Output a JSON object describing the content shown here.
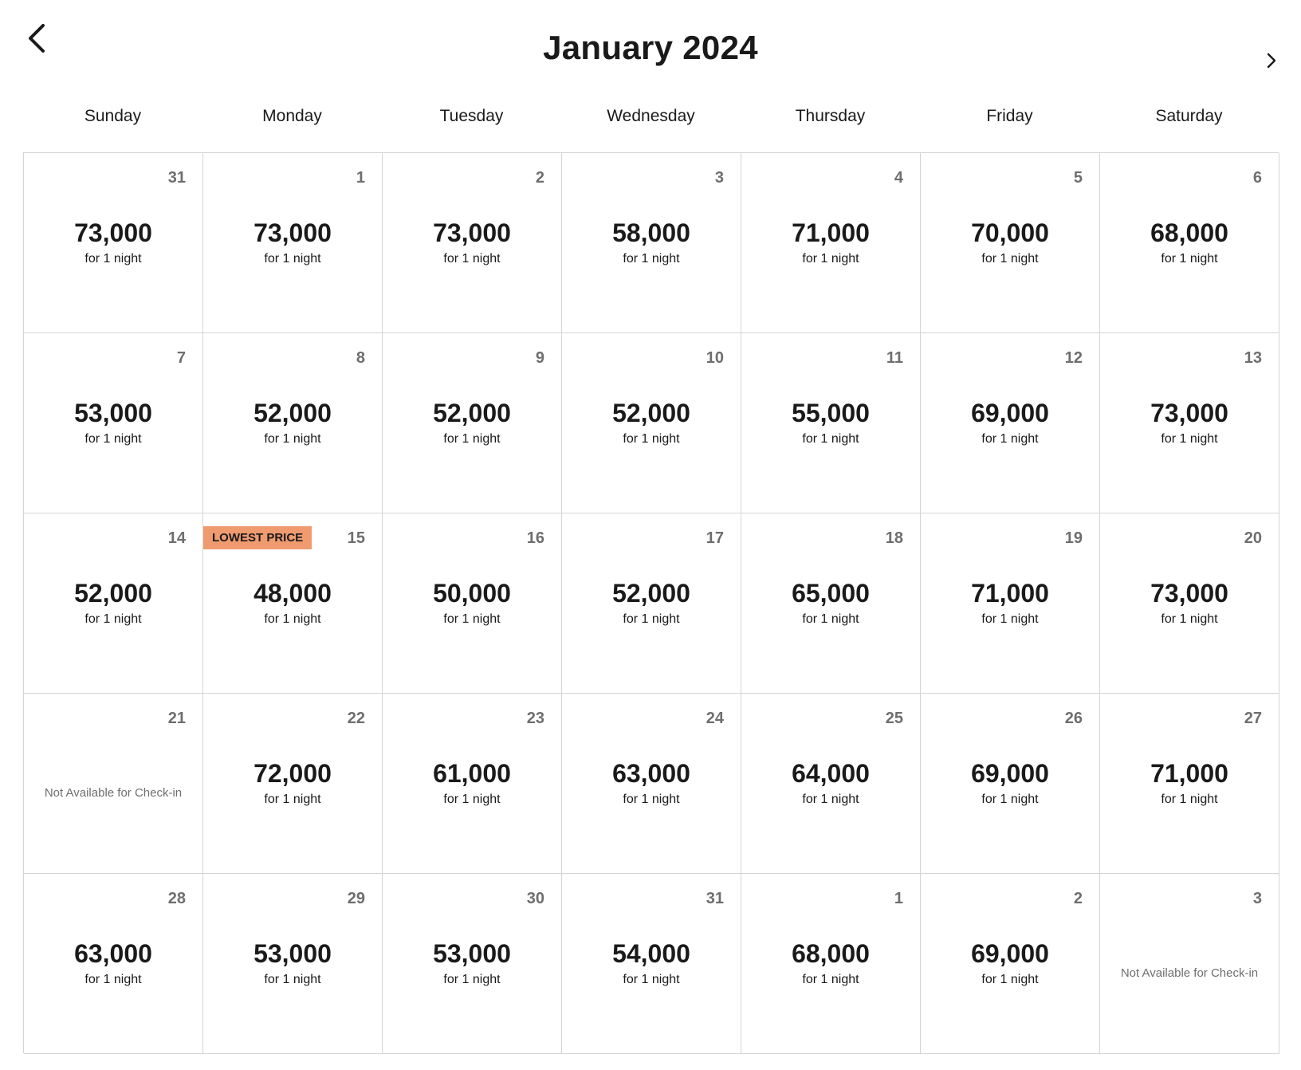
{
  "header": {
    "month_title": "January 2024",
    "prev_icon": "chevron-left-icon",
    "next_icon": "chevron-right-icon"
  },
  "weekdays": [
    "Sunday",
    "Monday",
    "Tuesday",
    "Wednesday",
    "Thursday",
    "Friday",
    "Saturday"
  ],
  "days": [
    {
      "day": "31",
      "price": "73,000",
      "nights": "for 1 night"
    },
    {
      "day": "1",
      "price": "73,000",
      "nights": "for 1 night"
    },
    {
      "day": "2",
      "price": "73,000",
      "nights": "for 1 night"
    },
    {
      "day": "3",
      "price": "58,000",
      "nights": "for 1 night"
    },
    {
      "day": "4",
      "price": "71,000",
      "nights": "for 1 night"
    },
    {
      "day": "5",
      "price": "70,000",
      "nights": "for 1 night"
    },
    {
      "day": "6",
      "price": "68,000",
      "nights": "for 1 night"
    },
    {
      "day": "7",
      "price": "53,000",
      "nights": "for 1 night"
    },
    {
      "day": "8",
      "price": "52,000",
      "nights": "for 1 night"
    },
    {
      "day": "9",
      "price": "52,000",
      "nights": "for 1 night"
    },
    {
      "day": "10",
      "price": "52,000",
      "nights": "for 1 night"
    },
    {
      "day": "11",
      "price": "55,000",
      "nights": "for 1 night"
    },
    {
      "day": "12",
      "price": "69,000",
      "nights": "for 1 night"
    },
    {
      "day": "13",
      "price": "73,000",
      "nights": "for 1 night"
    },
    {
      "day": "14",
      "price": "52,000",
      "nights": "for 1 night"
    },
    {
      "day": "15",
      "price": "48,000",
      "nights": "for 1 night",
      "badge": "LOWEST PRICE"
    },
    {
      "day": "16",
      "price": "50,000",
      "nights": "for 1 night"
    },
    {
      "day": "17",
      "price": "52,000",
      "nights": "for 1 night"
    },
    {
      "day": "18",
      "price": "65,000",
      "nights": "for 1 night"
    },
    {
      "day": "19",
      "price": "71,000",
      "nights": "for 1 night"
    },
    {
      "day": "20",
      "price": "73,000",
      "nights": "for 1 night"
    },
    {
      "day": "21",
      "unavailable": "Not Available for Check-in"
    },
    {
      "day": "22",
      "price": "72,000",
      "nights": "for 1 night"
    },
    {
      "day": "23",
      "price": "61,000",
      "nights": "for 1 night"
    },
    {
      "day": "24",
      "price": "63,000",
      "nights": "for 1 night"
    },
    {
      "day": "25",
      "price": "64,000",
      "nights": "for 1 night"
    },
    {
      "day": "26",
      "price": "69,000",
      "nights": "for 1 night"
    },
    {
      "day": "27",
      "price": "71,000",
      "nights": "for 1 night"
    },
    {
      "day": "28",
      "price": "63,000",
      "nights": "for 1 night"
    },
    {
      "day": "29",
      "price": "53,000",
      "nights": "for 1 night"
    },
    {
      "day": "30",
      "price": "53,000",
      "nights": "for 1 night"
    },
    {
      "day": "31",
      "price": "54,000",
      "nights": "for 1 night"
    },
    {
      "day": "1",
      "price": "68,000",
      "nights": "for 1 night"
    },
    {
      "day": "2",
      "price": "69,000",
      "nights": "for 1 night"
    },
    {
      "day": "3",
      "unavailable": "Not Available for Check-in"
    }
  ]
}
